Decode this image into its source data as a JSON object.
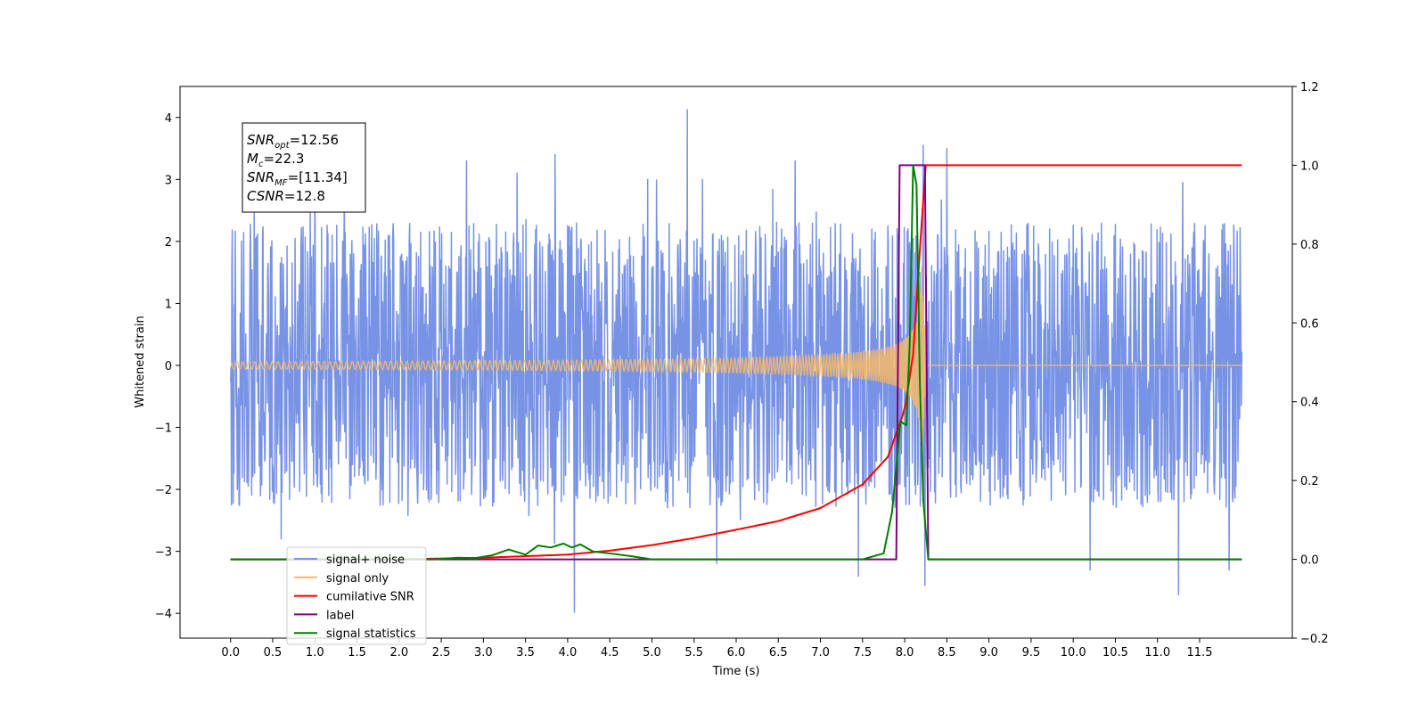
{
  "chart_data": {
    "type": "line",
    "xlabel": "Time (s)",
    "ylabel": "Whitened strain",
    "xlim": [
      -0.6,
      12.6
    ],
    "ylim": [
      -4.4,
      4.5
    ],
    "y2lim": [
      -0.2,
      1.2
    ],
    "x_ticks": [
      0.0,
      0.5,
      1.0,
      1.5,
      2.0,
      2.5,
      3.0,
      3.5,
      4.0,
      4.5,
      5.0,
      5.5,
      6.0,
      6.5,
      7.0,
      7.5,
      8.0,
      8.5,
      9.0,
      9.5,
      10.0,
      10.5,
      11.0,
      11.5
    ],
    "x_tick_labels": [
      "0.0",
      "0.5",
      "1.0",
      "1.5",
      "2.0",
      "2.5",
      "3.0",
      "3.5",
      "4.0",
      "4.5",
      "5.0",
      "5.5",
      "6.0",
      "6.5",
      "7.0",
      "7.5",
      "8.0",
      "8.5",
      "9.0",
      "9.5",
      "10.0",
      "10.5",
      "11.0",
      "11.5"
    ],
    "y_ticks": [
      -4,
      -3,
      -2,
      -1,
      0,
      1,
      2,
      3,
      4
    ],
    "y_tick_labels": [
      "−4",
      "−3",
      "−2",
      "−1",
      "0",
      "1",
      "2",
      "3",
      "4"
    ],
    "y2_ticks": [
      -0.2,
      0.0,
      0.2,
      0.4,
      0.6,
      0.8,
      1.0,
      1.2
    ],
    "y2_tick_labels": [
      "−0.2",
      "0.0",
      "0.2",
      "0.4",
      "0.6",
      "0.8",
      "1.0",
      "1.2"
    ],
    "grid": false,
    "legend_position": "lower-left",
    "annotation": {
      "lines": [
        {
          "base": "SNR",
          "sub": "opt",
          "rest": "=12.56"
        },
        {
          "base": "M",
          "sub": "c",
          "rest": "=22.3"
        },
        {
          "base": "SNR",
          "sub": "MF",
          "rest": "=[11.34]"
        },
        {
          "base": "CSNR",
          "sub": "",
          "rest": "=12.8"
        }
      ]
    },
    "noise": {
      "x_range": [
        0.0,
        12.0
      ],
      "y_range": [
        -4.0,
        4.1
      ],
      "typical_envelope": 1.5,
      "spikes": [
        {
          "x": 0.01,
          "y": 2.55
        },
        {
          "x": 0.01,
          "y": -2.25
        },
        {
          "x": 0.28,
          "y": 2.6
        },
        {
          "x": 0.6,
          "y": -2.8
        },
        {
          "x": 1.0,
          "y": 3.6
        },
        {
          "x": 1.35,
          "y": 3.0
        },
        {
          "x": 2.8,
          "y": 3.3
        },
        {
          "x": 3.4,
          "y": 3.1
        },
        {
          "x": 3.85,
          "y": 3.4
        },
        {
          "x": 4.08,
          "y": -3.98
        },
        {
          "x": 4.95,
          "y": 3.0
        },
        {
          "x": 5.42,
          "y": 4.12
        },
        {
          "x": 5.6,
          "y": 3.0
        },
        {
          "x": 6.7,
          "y": 3.3
        },
        {
          "x": 7.45,
          "y": -3.4
        },
        {
          "x": 8.22,
          "y": 3.55
        },
        {
          "x": 8.24,
          "y": -3.55
        },
        {
          "x": 8.5,
          "y": 3.5
        },
        {
          "x": 10.2,
          "y": -3.3
        },
        {
          "x": 11.25,
          "y": -3.7
        },
        {
          "x": 11.3,
          "y": 2.95
        },
        {
          "x": 11.85,
          "y": -3.3
        }
      ]
    },
    "series": [
      {
        "name": "signal+ noise",
        "color": "#7893e5",
        "axis": "left"
      },
      {
        "name": "signal only",
        "color": "#f4b969",
        "axis": "left",
        "chirp": {
          "start": 0.0,
          "merger": 8.2,
          "peak_amplitude": 1.6
        }
      },
      {
        "name": "cumilative SNR",
        "color": "#ff0000",
        "axis": "right",
        "x": [
          0.0,
          2.0,
          3.0,
          4.0,
          4.5,
          5.0,
          5.5,
          6.0,
          6.5,
          7.0,
          7.5,
          7.8,
          8.0,
          8.1,
          8.2,
          8.25,
          12.0
        ],
        "y": [
          0.0,
          0.0,
          0.004,
          0.012,
          0.022,
          0.036,
          0.054,
          0.075,
          0.097,
          0.13,
          0.19,
          0.26,
          0.38,
          0.52,
          0.85,
          1.0,
          1.0
        ]
      },
      {
        "name": "label",
        "color": "#800080",
        "axis": "right",
        "x": [
          0.0,
          7.9,
          7.94,
          8.24,
          8.28,
          12.0
        ],
        "y": [
          0.0,
          0.0,
          1.0,
          1.0,
          0.0,
          0.0
        ]
      },
      {
        "name": "signal statistics",
        "color": "#008000",
        "axis": "right",
        "x": [
          0.0,
          2.4,
          2.7,
          2.9,
          3.1,
          3.3,
          3.5,
          3.65,
          3.8,
          3.95,
          4.05,
          4.15,
          4.3,
          4.5,
          4.75,
          5.0,
          7.5,
          7.75,
          7.85,
          7.95,
          8.02,
          8.06,
          8.1,
          8.14,
          8.18,
          8.22,
          8.28,
          8.32,
          12.0
        ],
        "y": [
          0.0,
          0.0,
          0.004,
          0.003,
          0.01,
          0.025,
          0.012,
          0.035,
          0.03,
          0.04,
          0.03,
          0.038,
          0.02,
          0.015,
          0.008,
          0.0,
          0.0,
          0.015,
          0.12,
          0.35,
          0.34,
          0.55,
          1.0,
          0.95,
          0.45,
          0.15,
          0.0,
          0.0,
          0.0
        ]
      }
    ],
    "legend": [
      {
        "name": "signal+ noise",
        "color": "#7893e5"
      },
      {
        "name": "signal only",
        "color": "#f4b969"
      },
      {
        "name": "cumilative SNR",
        "color": "#ff0000"
      },
      {
        "name": "label",
        "color": "#800080"
      },
      {
        "name": "signal statistics",
        "color": "#008000"
      }
    ]
  }
}
